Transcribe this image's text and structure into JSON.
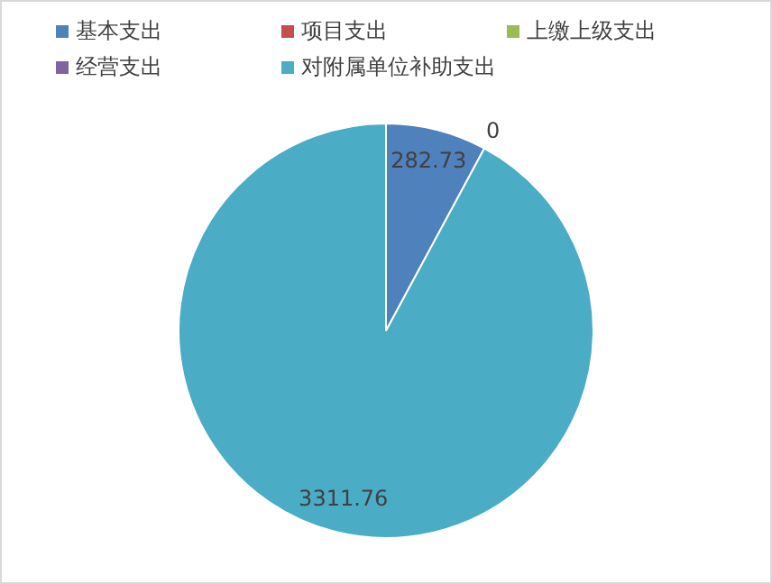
{
  "chart_data": {
    "type": "pie",
    "categories": [
      "基本支出",
      "项目支出",
      "上缴上级支出",
      "经营支出",
      "对附属单位补助支出"
    ],
    "values": [
      282.73,
      0,
      0,
      0,
      3311.76
    ],
    "colors": [
      "#4f81bd",
      "#c0504d",
      "#9bbb59",
      "#8064a2",
      "#4bacc6"
    ],
    "value_labels": [
      "282.73",
      "0",
      null,
      null,
      "3311.76"
    ],
    "legend": "top"
  }
}
